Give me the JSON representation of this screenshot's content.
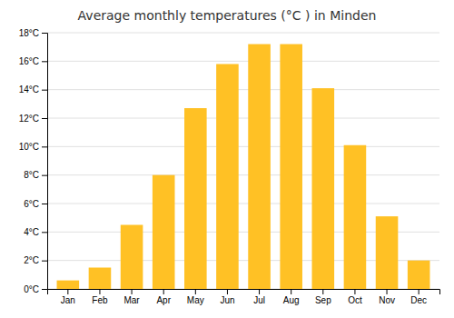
{
  "chart_data": {
    "type": "bar",
    "title": "Average monthly temperatures (°C ) in Minden",
    "categories": [
      "Jan",
      "Feb",
      "Mar",
      "Apr",
      "May",
      "Jun",
      "Jul",
      "Aug",
      "Sep",
      "Oct",
      "Nov",
      "Dec"
    ],
    "values": [
      0.6,
      1.5,
      4.5,
      8.0,
      12.7,
      15.8,
      17.2,
      17.2,
      14.1,
      10.1,
      5.1,
      2.0
    ],
    "color": "#FFC125",
    "ylim": [
      0,
      18
    ],
    "yticks": [
      {
        "value": 0,
        "label": "0°C"
      },
      {
        "value": 2,
        "label": "2°C"
      },
      {
        "value": 4,
        "label": "4°C"
      },
      {
        "value": 6,
        "label": "6°C"
      },
      {
        "value": 8,
        "label": "8°C"
      },
      {
        "value": 10,
        "label": "10°C"
      },
      {
        "value": 12,
        "label": "12°C"
      },
      {
        "value": 14,
        "label": "14°C"
      },
      {
        "value": 16,
        "label": "16°C"
      },
      {
        "value": 18,
        "label": "18°C"
      }
    ],
    "grid": true
  }
}
